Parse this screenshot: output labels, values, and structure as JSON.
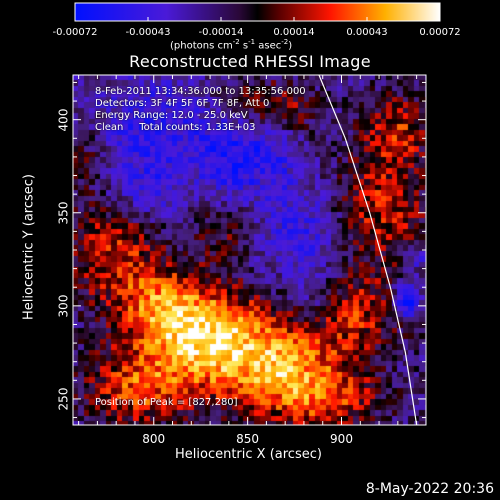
{
  "colorbar": {
    "tick_labels": [
      "-0.00072",
      "-0.00043",
      "-0.00014",
      "0.00014",
      "0.00043",
      "0.00072"
    ],
    "units_text": "(photons cm",
    "units_exp1": "-2",
    "units_mid": " s",
    "units_exp2": "-1",
    "units_mid2": " asec",
    "units_exp3": "-2",
    "units_end": ")",
    "range": [
      -0.00072,
      0.00072
    ]
  },
  "plot": {
    "title": "Reconstructed RHESSI Image",
    "info_lines": [
      "8-Feb-2011 13:34:36.000 to 13:35:56.000",
      "Detectors: 3F 4F 5F 6F 7F 8F, Att 0",
      "Energy Range: 12.0 - 25.0 keV",
      "Clean     Total counts: 1.33E+03"
    ],
    "peak_text": "Position of Peak = [827,280]",
    "x_axis_label": "Heliocentric X (arcsec)",
    "y_axis_label": "Heliocentric Y (arcsec)"
  },
  "timestamp": "8-May-2022 20:36",
  "colors": {
    "background": "#000000",
    "text": "#ffffff",
    "negative_min": "#0000ff",
    "zero": "#000000",
    "positive_mid": "#ff2000",
    "positive_max": "#ffffff"
  },
  "chart_data": {
    "type": "heatmap",
    "title": "Reconstructed RHESSI Image",
    "xlabel": "Heliocentric X (arcsec)",
    "ylabel": "Heliocentric Y (arcsec)",
    "xlim": [
      757,
      945
    ],
    "ylim": [
      236,
      424
    ],
    "xticks": [
      800,
      850,
      900
    ],
    "yticks": [
      250,
      300,
      350,
      400
    ],
    "value_range": [
      -0.00072,
      0.00072
    ],
    "units": "photons cm^-2 s^-1 asec^-2",
    "peak_position": [
      827,
      280
    ],
    "grid": false,
    "limb_curve": [
      [
        888,
        424
      ],
      [
        902,
        390
      ],
      [
        915,
        350
      ],
      [
        926,
        310
      ],
      [
        934,
        275
      ],
      [
        940,
        236
      ]
    ],
    "blobs": [
      {
        "x": 830,
        "y": 282,
        "sx": 26,
        "sy": 20,
        "amp": 1.0
      },
      {
        "x": 870,
        "y": 265,
        "sx": 22,
        "sy": 18,
        "amp": 0.7
      },
      {
        "x": 790,
        "y": 255,
        "sx": 20,
        "sy": 15,
        "amp": 0.6
      },
      {
        "x": 778,
        "y": 330,
        "sx": 18,
        "sy": 20,
        "amp": 0.6
      },
      {
        "x": 805,
        "y": 300,
        "sx": 16,
        "sy": 14,
        "amp": 0.55
      },
      {
        "x": 905,
        "y": 295,
        "sx": 18,
        "sy": 15,
        "amp": 0.55
      },
      {
        "x": 918,
        "y": 350,
        "sx": 20,
        "sy": 24,
        "amp": 0.6
      },
      {
        "x": 930,
        "y": 395,
        "sx": 12,
        "sy": 14,
        "amp": 0.5
      },
      {
        "x": 870,
        "y": 405,
        "sx": 12,
        "sy": 10,
        "amp": 0.45
      },
      {
        "x": 840,
        "y": 340,
        "sx": 14,
        "sy": 12,
        "amp": 0.35
      },
      {
        "x": 895,
        "y": 250,
        "sx": 20,
        "sy": 12,
        "amp": 0.5
      },
      {
        "x": 760,
        "y": 380,
        "sx": 10,
        "sy": 12,
        "amp": 0.35
      },
      {
        "x": 848,
        "y": 410,
        "sx": 12,
        "sy": 10,
        "amp": 0.3
      },
      {
        "x": 840,
        "y": 380,
        "sx": 12,
        "sy": 16,
        "amp": -0.45
      },
      {
        "x": 800,
        "y": 395,
        "sx": 22,
        "sy": 20,
        "amp": -0.45
      },
      {
        "x": 880,
        "y": 340,
        "sx": 22,
        "sy": 22,
        "amp": -0.45
      },
      {
        "x": 795,
        "y": 360,
        "sx": 14,
        "sy": 12,
        "amp": -0.35
      },
      {
        "x": 862,
        "y": 385,
        "sx": 12,
        "sy": 14,
        "amp": -0.35
      },
      {
        "x": 935,
        "y": 303,
        "sx": 5,
        "sy": 6,
        "amp": -1.0
      },
      {
        "x": 940,
        "y": 325,
        "sx": 5,
        "sy": 5,
        "amp": -0.5
      },
      {
        "x": 885,
        "y": 300,
        "sx": 10,
        "sy": 10,
        "amp": -0.3
      }
    ]
  }
}
